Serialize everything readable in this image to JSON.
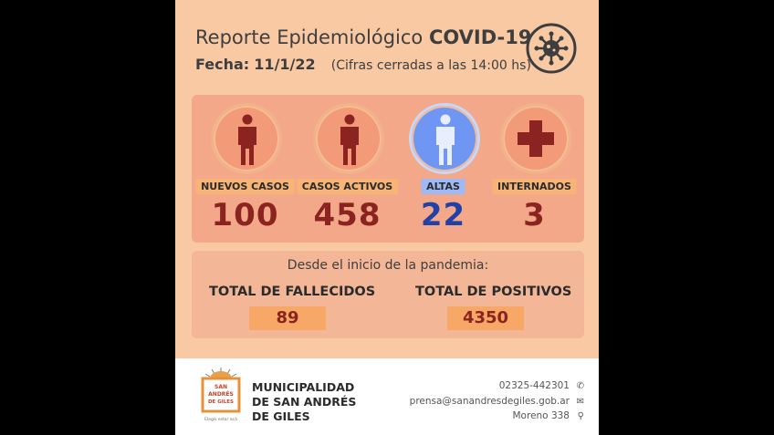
{
  "header": {
    "title_prefix": "Reporte Epidemiológico",
    "title_bold": "COVID-19",
    "date_label": "Fecha:",
    "date_value": "11/1/22",
    "note": "(Cifras cerradas a las 14:00 hs)",
    "icon": "virus-icon"
  },
  "stats": [
    {
      "label": "NUEVOS CASOS",
      "value": "100",
      "icon": "person-icon"
    },
    {
      "label": "CASOS ACTIVOS",
      "value": "458",
      "icon": "person-icon"
    },
    {
      "label": "ALTAS",
      "value": "22",
      "icon": "person-icon"
    },
    {
      "label": "INTERNADOS",
      "value": "3",
      "icon": "cross-icon"
    }
  ],
  "totals": {
    "since_text": "Desde el inicio de la pandemia:",
    "deaths_label": "TOTAL DE FALLECIDOS",
    "deaths_value": "89",
    "positives_label": "TOTAL DE POSITIVOS",
    "positives_value": "4350"
  },
  "footer": {
    "logo_text_1": "SAN",
    "logo_text_2": "ANDRÉS",
    "logo_text_3": "DE GILES",
    "logo_tagline": "Elegís estar acá",
    "municipality": "MUNICIPALIDAD DE SAN ANDRÉS DE GILES",
    "phone": "02325-442301",
    "email": "prensa@sanandresdegiles.gob.ar",
    "address": "Moreno 338"
  },
  "colors": {
    "background": "#f9c9a4",
    "accent_red": "#8b2420",
    "accent_blue": "#2340a7"
  }
}
